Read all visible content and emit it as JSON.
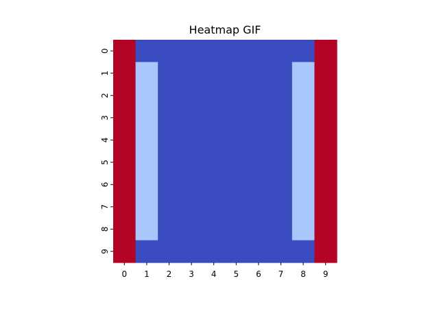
{
  "chart_data": {
    "type": "heatmap",
    "title": "Heatmap GIF",
    "xlabel": "",
    "ylabel": "",
    "x_labels": [
      "0",
      "1",
      "2",
      "3",
      "4",
      "5",
      "6",
      "7",
      "8",
      "9"
    ],
    "y_labels": [
      "0",
      "1",
      "2",
      "3",
      "4",
      "5",
      "6",
      "7",
      "8",
      "9"
    ],
    "colorscale": [
      "#3b4cc0",
      "#aac7fd",
      "#b40426"
    ],
    "colorbar": false,
    "values": [
      [
        2,
        0,
        0,
        0,
        0,
        0,
        0,
        0,
        0,
        2
      ],
      [
        2,
        1,
        0,
        0,
        0,
        0,
        0,
        0,
        1,
        2
      ],
      [
        2,
        1,
        0,
        0,
        0,
        0,
        0,
        0,
        1,
        2
      ],
      [
        2,
        1,
        0,
        0,
        0,
        0,
        0,
        0,
        1,
        2
      ],
      [
        2,
        1,
        0,
        0,
        0,
        0,
        0,
        0,
        1,
        2
      ],
      [
        2,
        1,
        0,
        0,
        0,
        0,
        0,
        0,
        1,
        2
      ],
      [
        2,
        1,
        0,
        0,
        0,
        0,
        0,
        0,
        1,
        2
      ],
      [
        2,
        1,
        0,
        0,
        0,
        0,
        0,
        0,
        1,
        2
      ],
      [
        2,
        1,
        0,
        0,
        0,
        0,
        0,
        0,
        1,
        2
      ],
      [
        2,
        0,
        0,
        0,
        0,
        0,
        0,
        0,
        0,
        2
      ]
    ],
    "value_range": [
      0,
      2
    ]
  }
}
